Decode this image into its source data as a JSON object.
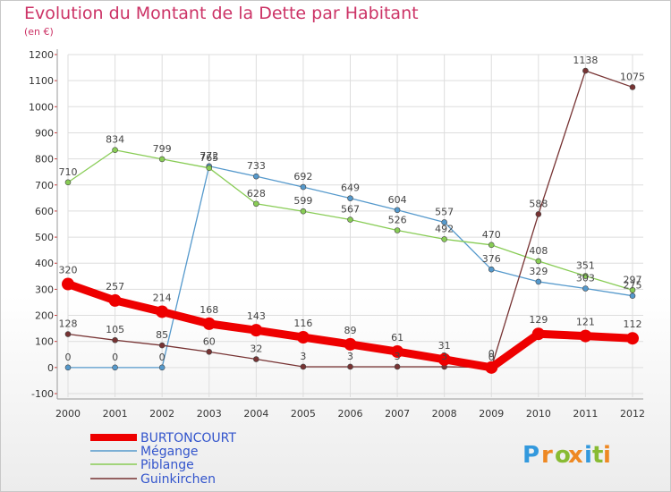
{
  "chart_data": {
    "type": "line",
    "title": "Evolution du Montant de la Dette par Habitant",
    "subtitle": "(en €)",
    "xlabel": "",
    "ylabel": "",
    "ylim": [
      -100,
      1200
    ],
    "y_ticks": [
      -100,
      0,
      100,
      200,
      300,
      400,
      500,
      600,
      700,
      800,
      900,
      1000,
      1100,
      1200
    ],
    "categories": [
      "2000",
      "2001",
      "2002",
      "2003",
      "2004",
      "2005",
      "2006",
      "2007",
      "2008",
      "2009",
      "2010",
      "2011",
      "2012"
    ],
    "series": [
      {
        "name": "Mégange",
        "color": "#5599cc",
        "values": [
          0,
          0,
          0,
          772,
          733,
          692,
          649,
          604,
          557,
          376,
          329,
          303,
          275
        ]
      },
      {
        "name": "Piblange",
        "color": "#88cc55",
        "values": [
          710,
          834,
          799,
          765,
          628,
          599,
          567,
          526,
          492,
          470,
          408,
          351,
          297
        ]
      },
      {
        "name": "Guinkirchen",
        "color": "#773333",
        "values": [
          128,
          105,
          85,
          60,
          32,
          3,
          3,
          3,
          3,
          0,
          588,
          1138,
          1075
        ]
      },
      {
        "name": "BURTONCOURT",
        "color": "#ee0000",
        "values": [
          320,
          257,
          214,
          168,
          143,
          116,
          89,
          61,
          31,
          0,
          129,
          121,
          112
        ]
      }
    ],
    "legend_position": "bottom-left",
    "legend": [
      "BURTONCOURT",
      "Mégange",
      "Piblange",
      "Guinkirchen"
    ]
  },
  "brand": {
    "letters": [
      "P",
      "r",
      "o",
      "x",
      "i",
      "t",
      "i"
    ],
    "colors": [
      "#3399dd",
      "#ee8822",
      "#88bb33",
      "#ee8822",
      "#3399dd",
      "#88bb33",
      "#ee8822"
    ]
  }
}
